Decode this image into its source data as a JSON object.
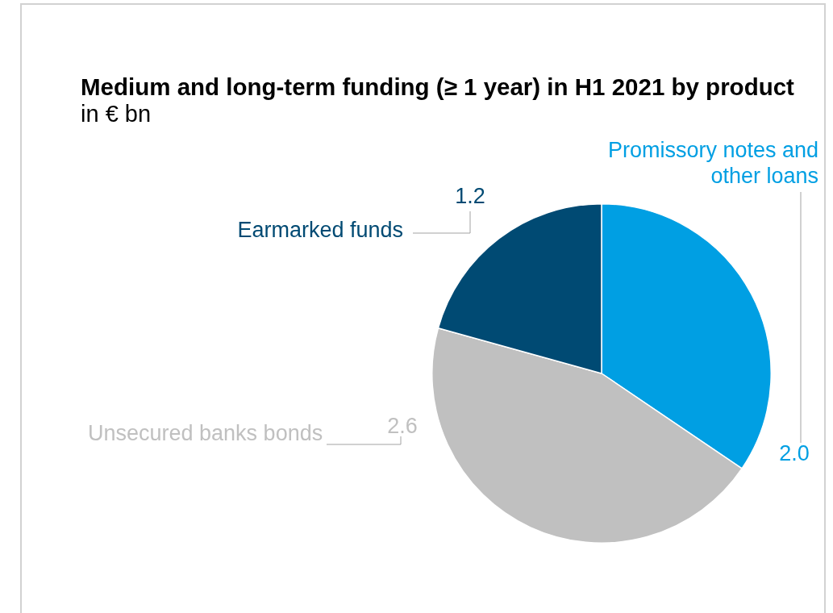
{
  "chart_data": {
    "type": "pie",
    "title": "Medium and long-term funding (≥ 1 year) in H1 2021 by product",
    "subtitle": "in € bn",
    "categories": [
      "Promissory notes and other loans",
      "Unsecured banks bonds",
      "Earmarked funds"
    ],
    "values": [
      2.0,
      2.6,
      1.2
    ],
    "colors": [
      "#009fe3",
      "#c0c0c0",
      "#004a73"
    ],
    "value_labels": [
      "2.0",
      "2.6",
      "1.2"
    ],
    "legend": false
  }
}
